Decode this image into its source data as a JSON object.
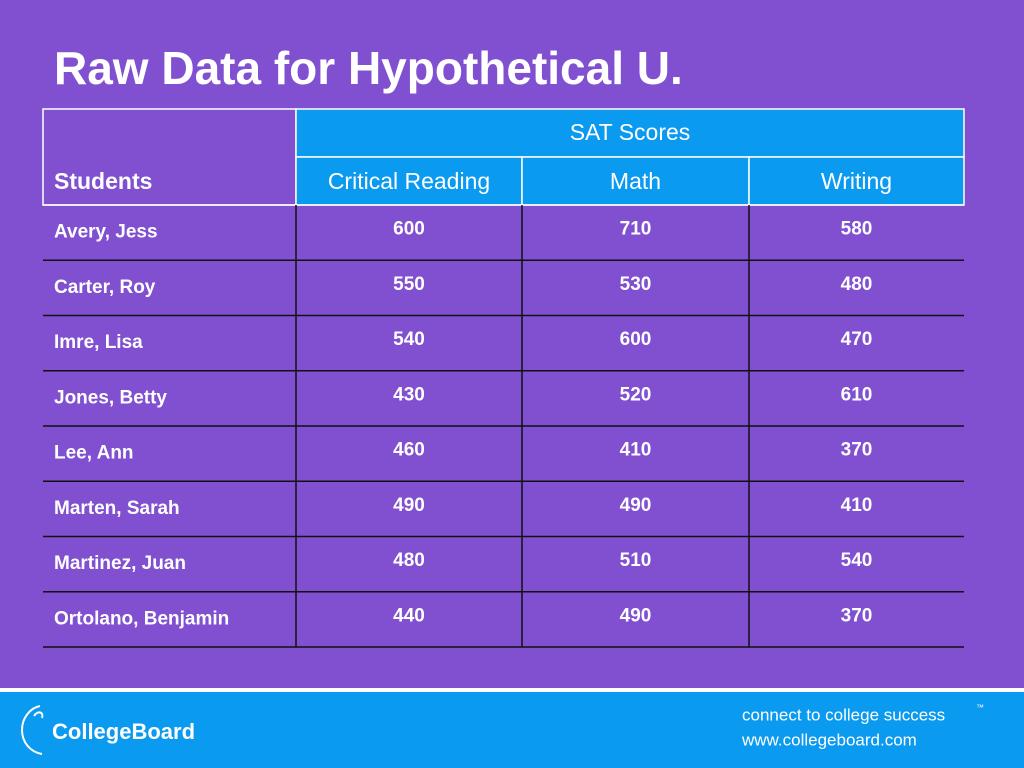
{
  "title": "Raw Data for Hypothetical U.",
  "table": {
    "row_header": "Students",
    "group_header": "SAT Scores",
    "columns": [
      "Critical Reading",
      "Math",
      "Writing"
    ],
    "rows": [
      [
        "Avery, Jess",
        600,
        710,
        580
      ],
      [
        "Carter, Roy",
        550,
        530,
        480
      ],
      [
        "Imre, Lisa",
        540,
        600,
        470
      ],
      [
        "Jones, Betty",
        430,
        520,
        610
      ],
      [
        "Lee, Ann",
        460,
        410,
        370
      ],
      [
        "Marten, Sarah",
        490,
        490,
        410
      ],
      [
        "Martinez, Juan",
        480,
        510,
        540
      ],
      [
        "Ortolano, Benjamin",
        440,
        490,
        370
      ]
    ]
  },
  "footer": {
    "logo": "CollegeBoard",
    "tagline": "connect to college success",
    "trademark": "™",
    "url": "www.collegeboard.com"
  }
}
